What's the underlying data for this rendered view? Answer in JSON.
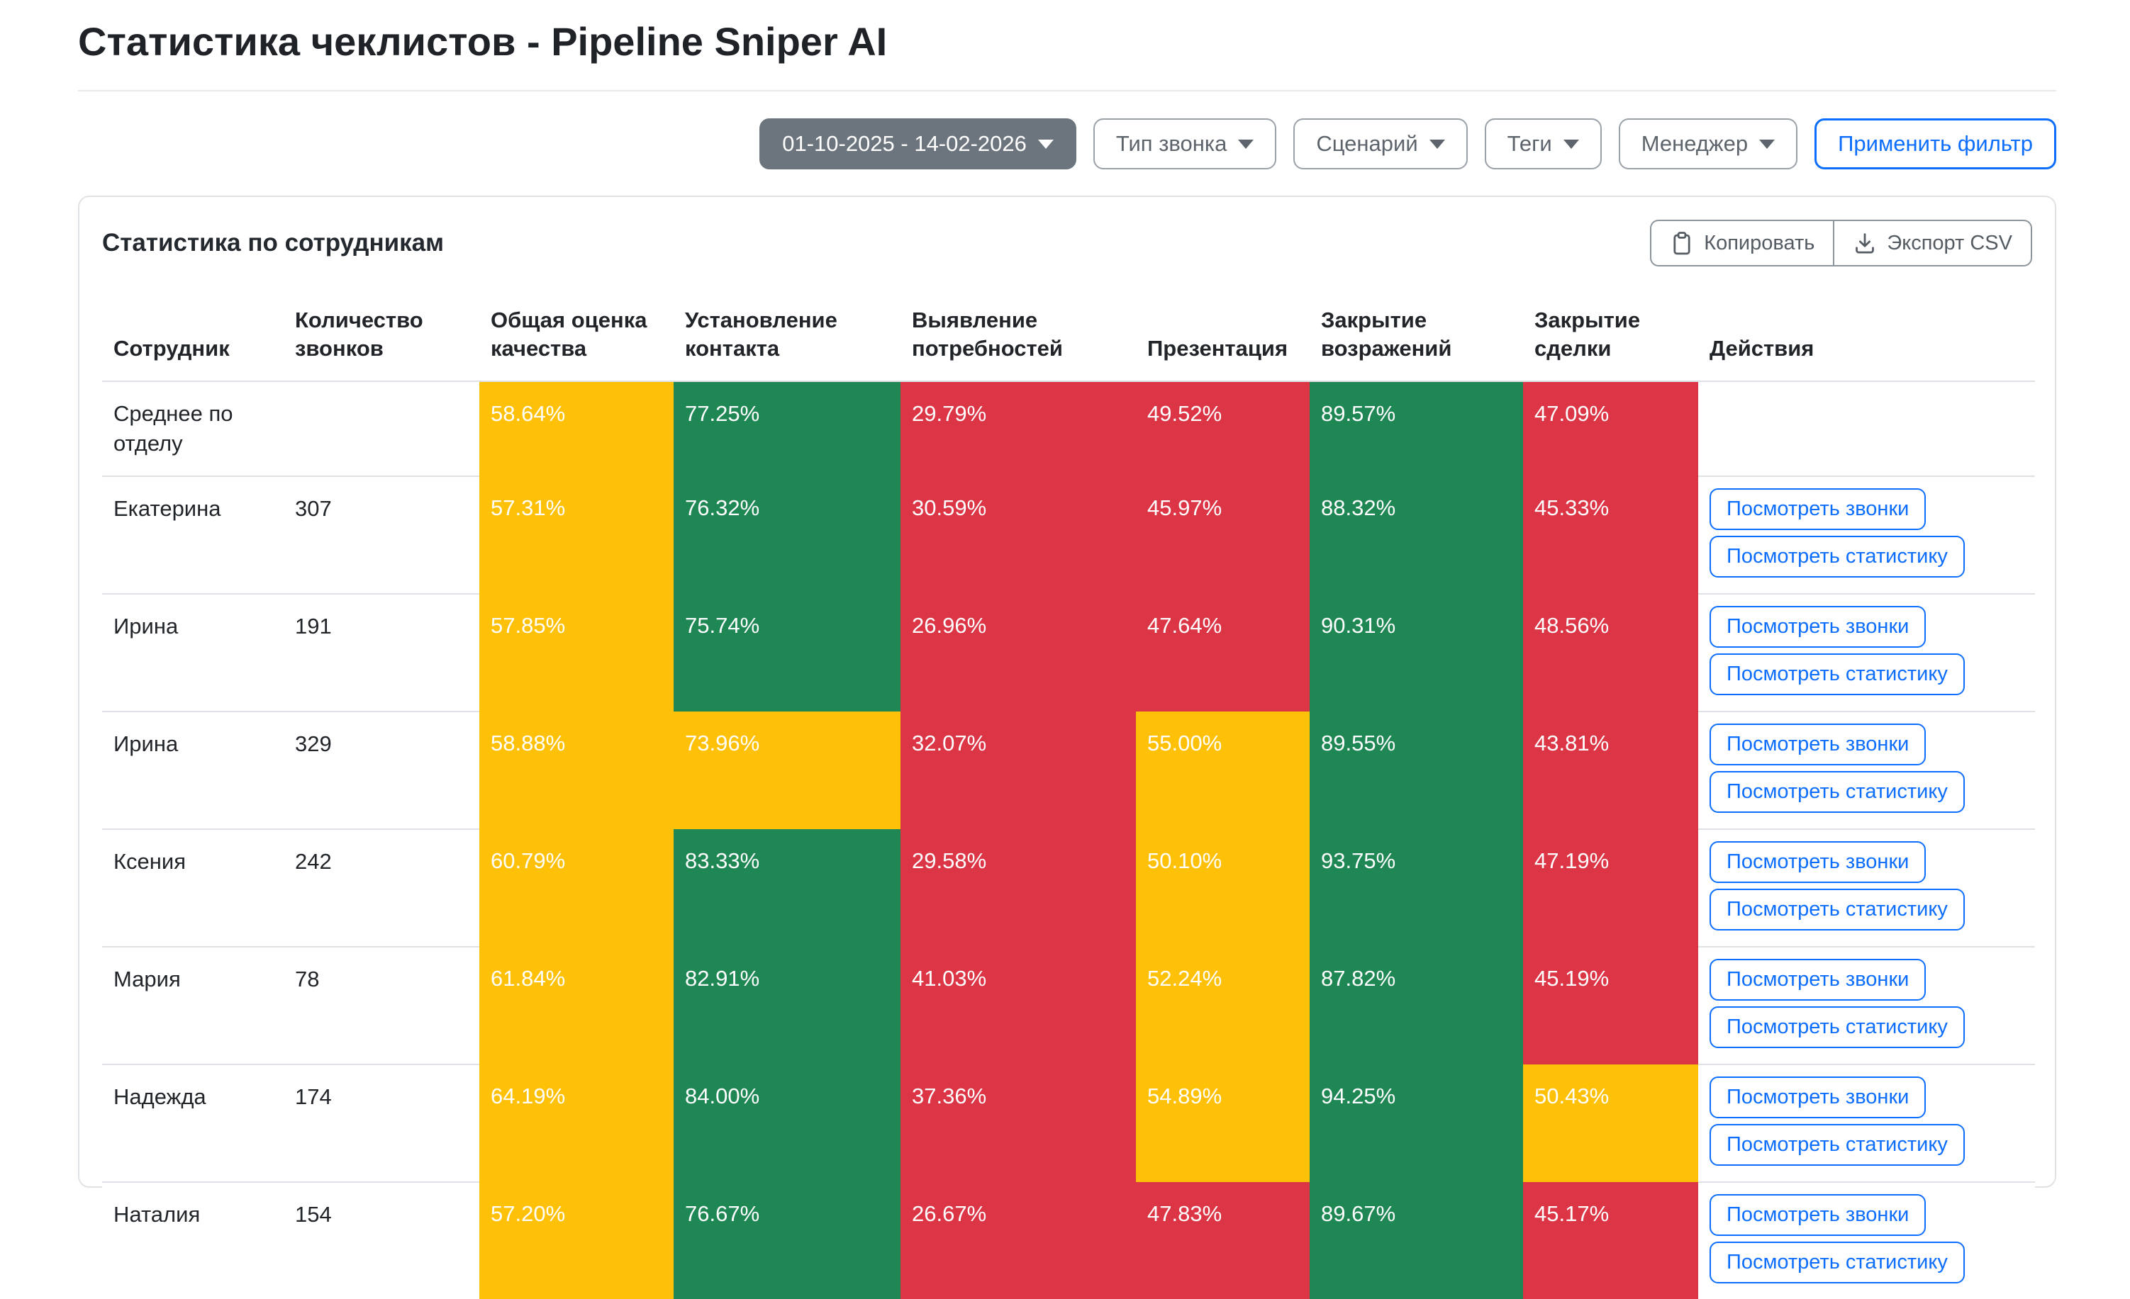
{
  "page": {
    "title": "Статистика чеклистов - Pipeline Sniper AI"
  },
  "filters": {
    "date_range": "01-10-2025 - 14-02-2026",
    "dropdowns": [
      "Тип звонка",
      "Сценарий",
      "Теги",
      "Менеджер"
    ],
    "apply_label": "Применить фильтр"
  },
  "card": {
    "title": "Статистика по сотрудникам",
    "copy_label": "Копировать",
    "export_label": "Экспорт CSV"
  },
  "table": {
    "columns": [
      "Сотрудник",
      "Количество звонков",
      "Общая оценка качества",
      "Установление контакта",
      "Выявление потребностей",
      "Презентация",
      "Закрытие возражений",
      "Закрытие сделки",
      "Действия"
    ],
    "action_labels": [
      "Посмотреть звонки",
      "Посмотреть статистику"
    ],
    "rows": [
      {
        "name": "Среднее по отделу",
        "calls": "",
        "actions": false,
        "metrics": [
          {
            "value": "58.64%",
            "status": "warning"
          },
          {
            "value": "77.25%",
            "status": "success"
          },
          {
            "value": "29.79%",
            "status": "danger"
          },
          {
            "value": "49.52%",
            "status": "danger"
          },
          {
            "value": "89.57%",
            "status": "success"
          },
          {
            "value": "47.09%",
            "status": "danger"
          }
        ]
      },
      {
        "name": "Екатерина",
        "calls": "307",
        "actions": true,
        "metrics": [
          {
            "value": "57.31%",
            "status": "warning"
          },
          {
            "value": "76.32%",
            "status": "success"
          },
          {
            "value": "30.59%",
            "status": "danger"
          },
          {
            "value": "45.97%",
            "status": "danger"
          },
          {
            "value": "88.32%",
            "status": "success"
          },
          {
            "value": "45.33%",
            "status": "danger"
          }
        ]
      },
      {
        "name": "Ирина",
        "calls": "191",
        "actions": true,
        "metrics": [
          {
            "value": "57.85%",
            "status": "warning"
          },
          {
            "value": "75.74%",
            "status": "success"
          },
          {
            "value": "26.96%",
            "status": "danger"
          },
          {
            "value": "47.64%",
            "status": "danger"
          },
          {
            "value": "90.31%",
            "status": "success"
          },
          {
            "value": "48.56%",
            "status": "danger"
          }
        ]
      },
      {
        "name": "Ирина",
        "calls": "329",
        "actions": true,
        "metrics": [
          {
            "value": "58.88%",
            "status": "warning"
          },
          {
            "value": "73.96%",
            "status": "warning"
          },
          {
            "value": "32.07%",
            "status": "danger"
          },
          {
            "value": "55.00%",
            "status": "warning"
          },
          {
            "value": "89.55%",
            "status": "success"
          },
          {
            "value": "43.81%",
            "status": "danger"
          }
        ]
      },
      {
        "name": "Ксения",
        "calls": "242",
        "actions": true,
        "metrics": [
          {
            "value": "60.79%",
            "status": "warning"
          },
          {
            "value": "83.33%",
            "status": "success"
          },
          {
            "value": "29.58%",
            "status": "danger"
          },
          {
            "value": "50.10%",
            "status": "warning"
          },
          {
            "value": "93.75%",
            "status": "success"
          },
          {
            "value": "47.19%",
            "status": "danger"
          }
        ]
      },
      {
        "name": "Мария",
        "calls": "78",
        "actions": true,
        "metrics": [
          {
            "value": "61.84%",
            "status": "warning"
          },
          {
            "value": "82.91%",
            "status": "success"
          },
          {
            "value": "41.03%",
            "status": "danger"
          },
          {
            "value": "52.24%",
            "status": "warning"
          },
          {
            "value": "87.82%",
            "status": "success"
          },
          {
            "value": "45.19%",
            "status": "danger"
          }
        ]
      },
      {
        "name": "Надежда",
        "calls": "174",
        "actions": true,
        "metrics": [
          {
            "value": "64.19%",
            "status": "warning"
          },
          {
            "value": "84.00%",
            "status": "success"
          },
          {
            "value": "37.36%",
            "status": "danger"
          },
          {
            "value": "54.89%",
            "status": "warning"
          },
          {
            "value": "94.25%",
            "status": "success"
          },
          {
            "value": "50.43%",
            "status": "warning"
          }
        ]
      },
      {
        "name": "Наталия",
        "calls": "154",
        "actions": true,
        "metrics": [
          {
            "value": "57.20%",
            "status": "warning"
          },
          {
            "value": "76.67%",
            "status": "success"
          },
          {
            "value": "26.67%",
            "status": "danger"
          },
          {
            "value": "47.83%",
            "status": "danger"
          },
          {
            "value": "89.67%",
            "status": "success"
          },
          {
            "value": "45.17%",
            "status": "danger"
          }
        ]
      }
    ]
  },
  "colors": {
    "warning": "#FFC107",
    "success": "#1E8754",
    "danger": "#DC3545",
    "accent": "#0D6EFD",
    "secondary": "#6C757D"
  }
}
